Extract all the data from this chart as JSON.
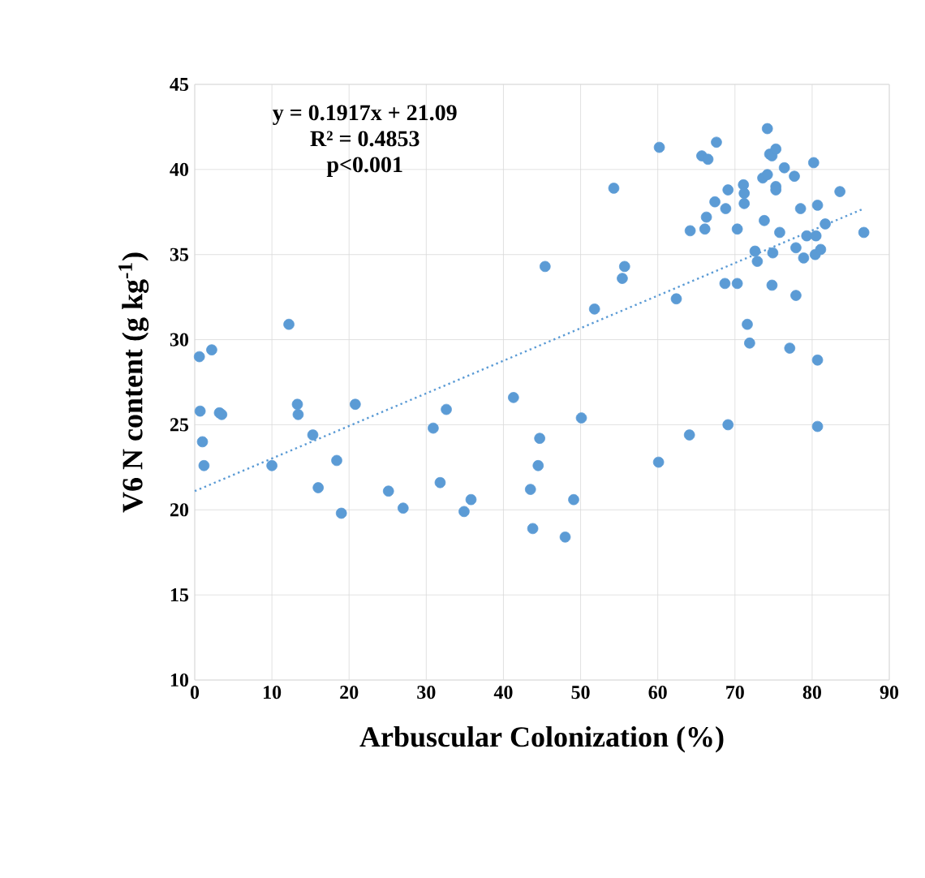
{
  "chart_data": {
    "type": "scatter",
    "xlabel": "Arbuscular Colonization (%)",
    "ylabel": "V6 N content (g kg$^{-1}$)",
    "annotations": [
      "y = 0.1917x + 21.09",
      "R² = 0.4853",
      "p<0.001"
    ],
    "xlim": [
      0,
      90
    ],
    "xticks": [
      0,
      10,
      20,
      30,
      40,
      50,
      60,
      70,
      80,
      90
    ],
    "ylim": [
      10,
      45
    ],
    "yticks": [
      10,
      15,
      20,
      25,
      30,
      35,
      40,
      45
    ],
    "grid": true,
    "series": [
      {
        "color": "#5b9bd5",
        "marker": "circle",
        "x": [
          0.6,
          2.2,
          0.7,
          1.0,
          1.2,
          3.2,
          3.5,
          10,
          12.2,
          13.3,
          13.4,
          15.3,
          16.0,
          18.4,
          19.0,
          20.8,
          25.1,
          27.0,
          30.9,
          32.6,
          31.8,
          34.9,
          35.8,
          41.3,
          44.7,
          44.5,
          43.5,
          43.8,
          48.0,
          49.1,
          50.1,
          45.4,
          51.8,
          54.3,
          55.4,
          55.7,
          60.2,
          60.1,
          62.4,
          64.1,
          64.2,
          66.1,
          66.3,
          65.7,
          66.5,
          67.6,
          67.4,
          68.8,
          69.1,
          68.7,
          70.3,
          70.3,
          69.1,
          71.1,
          71.2,
          71.2,
          71.6,
          71.9,
          72.6,
          72.9,
          73.8,
          73.6,
          74.2,
          74.2,
          74.5,
          74.8,
          75.3,
          75.3,
          75.3,
          74.9,
          74.8,
          75.8,
          76.4,
          77.7,
          77.1,
          77.9,
          77.9,
          78.5,
          78.9,
          79.3,
          80.2,
          80.7,
          80.5,
          80.4,
          81.1,
          80.7,
          80.7,
          81.7,
          83.6,
          86.7
        ],
        "values": [
          29.0,
          29.4,
          25.8,
          24.0,
          22.6,
          25.7,
          25.6,
          22.6,
          30.9,
          26.2,
          25.6,
          24.4,
          21.3,
          22.9,
          19.8,
          26.2,
          21.1,
          20.1,
          24.8,
          25.9,
          21.6,
          19.9,
          20.6,
          26.6,
          24.2,
          22.6,
          21.2,
          18.9,
          18.4,
          20.6,
          25.4,
          34.3,
          31.8,
          38.9,
          33.6,
          34.3,
          41.3,
          22.8,
          32.4,
          24.4,
          36.4,
          36.5,
          37.2,
          40.8,
          40.6,
          41.6,
          38.1,
          37.7,
          38.8,
          33.3,
          33.3,
          36.5,
          25.0,
          39.1,
          38.6,
          38.0,
          30.9,
          29.8,
          35.2,
          34.6,
          37.0,
          39.5,
          39.7,
          42.4,
          40.9,
          40.8,
          41.2,
          39.0,
          38.8,
          35.1,
          33.2,
          36.3,
          40.1,
          39.6,
          29.5,
          32.6,
          35.4,
          37.7,
          34.8,
          36.1,
          40.4,
          37.9,
          36.1,
          35.0,
          35.3,
          28.8,
          24.9,
          36.8,
          38.7,
          36.3
        ]
      },
      {
        "type": "line",
        "color": "#5b9bd5",
        "line_style": "dotted",
        "x": [
          0,
          86.7
        ],
        "values": [
          21.1,
          37.7
        ]
      }
    ]
  }
}
